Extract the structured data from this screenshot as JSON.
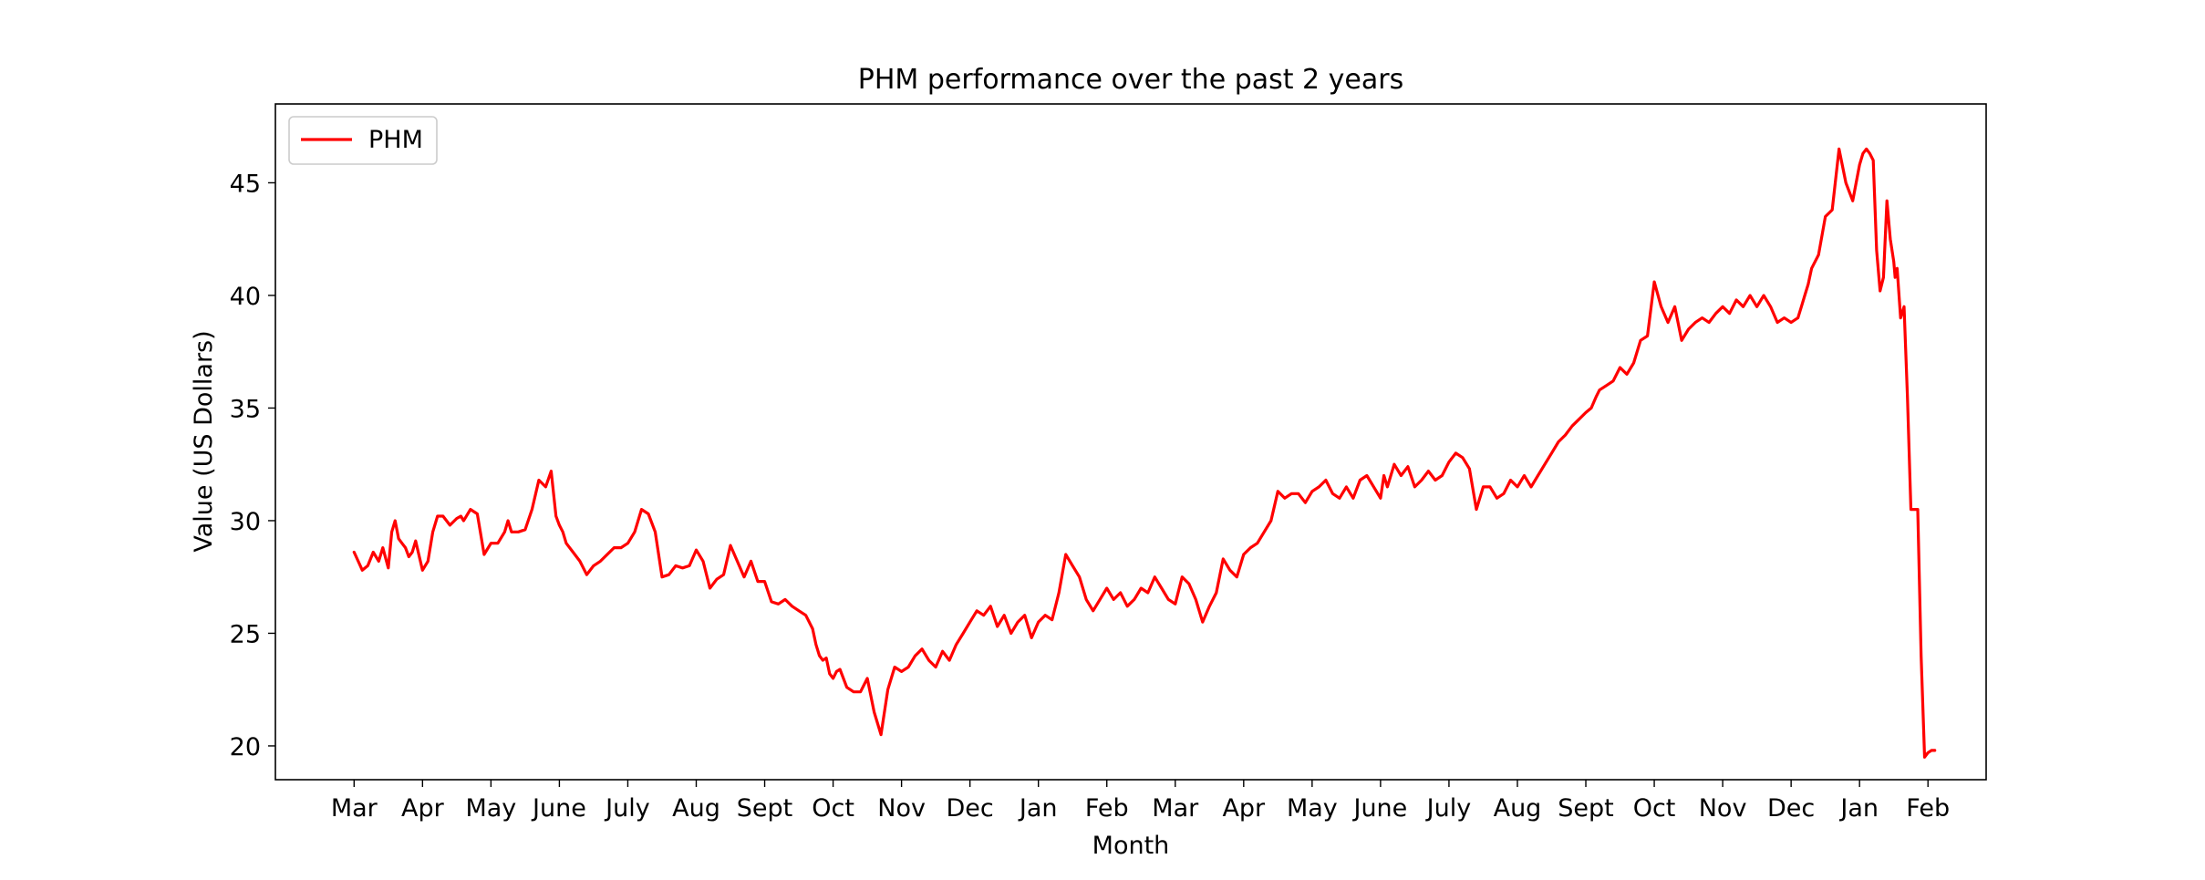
{
  "chart_data": {
    "type": "line",
    "title": "PHM performance over the past 2 years",
    "xlabel": "Month",
    "ylabel": "Value (US Dollars)",
    "x_tick_labels": [
      "Mar",
      "Apr",
      "May",
      "June",
      "July",
      "Aug",
      "Sept",
      "Oct",
      "Nov",
      "Dec",
      "Jan",
      "Feb",
      "Mar",
      "Apr",
      "May",
      "June",
      "July",
      "Aug",
      "Sept",
      "Oct",
      "Nov",
      "Dec",
      "Jan",
      "Feb"
    ],
    "y_ticks": [
      20,
      25,
      30,
      35,
      40,
      45
    ],
    "ylim": [
      18.5,
      48.5
    ],
    "xlim": [
      -1.15,
      23.85
    ],
    "grid": false,
    "legend_position": "upper left",
    "series": [
      {
        "name": "PHM",
        "color": "#ff0000",
        "x": [
          0,
          0.06,
          0.12,
          0.2,
          0.28,
          0.36,
          0.42,
          0.5,
          0.55,
          0.6,
          0.65,
          0.7,
          0.75,
          0.8,
          0.85,
          0.9,
          1,
          1.08,
          1.15,
          1.22,
          1.3,
          1.4,
          1.5,
          1.56,
          1.6,
          1.7,
          1.8,
          1.9,
          2,
          2.1,
          2.2,
          2.25,
          2.3,
          2.4,
          2.5,
          2.6,
          2.7,
          2.8,
          2.88,
          2.95,
          3,
          3.05,
          3.1,
          3.2,
          3.3,
          3.4,
          3.5,
          3.6,
          3.7,
          3.8,
          3.9,
          4,
          4.1,
          4.2,
          4.3,
          4.4,
          4.5,
          4.6,
          4.7,
          4.8,
          4.9,
          5,
          5.1,
          5.2,
          5.3,
          5.4,
          5.5,
          5.6,
          5.7,
          5.8,
          5.9,
          6,
          6.1,
          6.2,
          6.3,
          6.4,
          6.5,
          6.6,
          6.7,
          6.75,
          6.8,
          6.85,
          6.9,
          6.95,
          7,
          7.05,
          7.1,
          7.2,
          7.3,
          7.4,
          7.5,
          7.6,
          7.7,
          7.8,
          7.9,
          8,
          8.1,
          8.2,
          8.3,
          8.4,
          8.5,
          8.6,
          8.7,
          8.8,
          8.9,
          9,
          9.1,
          9.2,
          9.3,
          9.4,
          9.5,
          9.6,
          9.7,
          9.8,
          9.9,
          10,
          10.1,
          10.2,
          10.3,
          10.4,
          10.5,
          10.6,
          10.7,
          10.8,
          10.9,
          11,
          11.1,
          11.2,
          11.3,
          11.4,
          11.5,
          11.6,
          11.7,
          11.8,
          11.9,
          12,
          12.1,
          12.2,
          12.3,
          12.4,
          12.5,
          12.6,
          12.7,
          12.8,
          12.9,
          13,
          13.1,
          13.2,
          13.3,
          13.4,
          13.5,
          13.6,
          13.7,
          13.8,
          13.9,
          14,
          14.1,
          14.2,
          14.3,
          14.4,
          14.5,
          14.6,
          14.7,
          14.8,
          14.9,
          15,
          15.05,
          15.1,
          15.2,
          15.3,
          15.4,
          15.5,
          15.6,
          15.7,
          15.8,
          15.9,
          16,
          16.1,
          16.2,
          16.3,
          16.4,
          16.5,
          16.6,
          16.7,
          16.8,
          16.9,
          17,
          17.1,
          17.2,
          17.3,
          17.4,
          17.5,
          17.6,
          17.7,
          17.8,
          17.9,
          18,
          18.08,
          18.15,
          18.2,
          18.3,
          18.4,
          18.5,
          18.6,
          18.7,
          18.8,
          18.9,
          19,
          19.1,
          19.2,
          19.3,
          19.4,
          19.5,
          19.6,
          19.7,
          19.8,
          19.9,
          20,
          20.1,
          20.2,
          20.3,
          20.4,
          20.5,
          20.6,
          20.7,
          20.8,
          20.9,
          21,
          21.1,
          21.15,
          21.2,
          21.25,
          21.3,
          21.4,
          21.5,
          21.6,
          21.7,
          21.8,
          21.9,
          22,
          22.05,
          22.1,
          22.15,
          22.2,
          22.25,
          22.3,
          22.35,
          22.4,
          22.45,
          22.5,
          22.52,
          22.55,
          22.6,
          22.65,
          22.7,
          22.75,
          22.8,
          22.85,
          22.9,
          22.95,
          23,
          23.05,
          23.1
        ],
        "values": [
          28.6,
          28.2,
          27.8,
          28.0,
          28.6,
          28.2,
          28.8,
          27.9,
          29.5,
          30.0,
          29.2,
          29.0,
          28.8,
          28.4,
          28.6,
          29.1,
          27.8,
          28.2,
          29.5,
          30.2,
          30.2,
          29.8,
          30.1,
          30.2,
          30.0,
          30.5,
          30.3,
          28.5,
          29.0,
          29.0,
          29.5,
          30.0,
          29.5,
          29.5,
          29.6,
          30.5,
          31.8,
          31.5,
          32.2,
          30.2,
          29.8,
          29.5,
          29.0,
          28.6,
          28.2,
          27.6,
          28.0,
          28.2,
          28.5,
          28.8,
          28.8,
          29.0,
          29.5,
          30.5,
          30.3,
          29.5,
          27.5,
          27.6,
          28.0,
          27.9,
          28.0,
          28.7,
          28.2,
          27.0,
          27.4,
          27.6,
          28.9,
          28.2,
          27.5,
          28.2,
          27.3,
          27.3,
          26.4,
          26.3,
          26.5,
          26.2,
          26.0,
          25.8,
          25.2,
          24.5,
          24.0,
          23.8,
          23.9,
          23.2,
          23.0,
          23.3,
          23.4,
          22.6,
          22.4,
          22.4,
          23.0,
          21.5,
          20.5,
          22.5,
          23.5,
          23.3,
          23.5,
          24.0,
          24.3,
          23.8,
          23.5,
          24.2,
          23.8,
          24.5,
          25.0,
          25.5,
          26.0,
          25.8,
          26.2,
          25.3,
          25.8,
          25.0,
          25.5,
          25.8,
          24.8,
          25.5,
          25.8,
          25.6,
          26.8,
          28.5,
          28.0,
          27.5,
          26.5,
          26.0,
          26.5,
          27.0,
          26.5,
          26.8,
          26.2,
          26.5,
          27.0,
          26.8,
          27.5,
          27.0,
          26.5,
          26.3,
          27.5,
          27.2,
          26.5,
          25.5,
          26.2,
          26.8,
          28.3,
          27.8,
          27.5,
          28.5,
          28.8,
          29.0,
          29.5,
          30.0,
          31.3,
          31.0,
          31.2,
          31.2,
          30.8,
          31.3,
          31.5,
          31.8,
          31.2,
          31.0,
          31.5,
          31.0,
          31.8,
          32.0,
          31.5,
          31.0,
          32.0,
          31.5,
          32.5,
          32.0,
          32.4,
          31.5,
          31.8,
          32.2,
          31.8,
          32.0,
          32.6,
          33.0,
          32.8,
          32.3,
          30.5,
          31.5,
          31.5,
          31.0,
          31.2,
          31.8,
          31.5,
          32.0,
          31.5,
          32.0,
          32.5,
          33.0,
          33.5,
          33.8,
          34.2,
          34.5,
          34.8,
          35.0,
          35.5,
          35.8,
          36.0,
          36.2,
          36.8,
          36.5,
          37.0,
          38.0,
          38.2,
          40.6,
          39.5,
          38.8,
          39.5,
          38.0,
          38.5,
          38.8,
          39.0,
          38.8,
          39.2,
          39.5,
          39.2,
          39.8,
          39.5,
          40.0,
          39.5,
          40.0,
          39.5,
          38.8,
          39.0,
          38.8,
          39.0,
          39.5,
          40.0,
          40.5,
          41.2,
          41.8,
          43.5,
          43.8,
          46.5,
          45.0,
          44.2,
          45.8,
          46.3,
          46.5,
          46.3,
          46.0,
          42.0,
          40.2,
          40.8,
          44.2,
          42.5,
          41.5,
          40.8,
          41.2,
          39.0,
          39.5,
          35.5,
          30.5,
          30.5,
          30.5,
          24.0,
          19.5,
          19.7,
          19.8,
          19.8
        ]
      }
    ]
  }
}
